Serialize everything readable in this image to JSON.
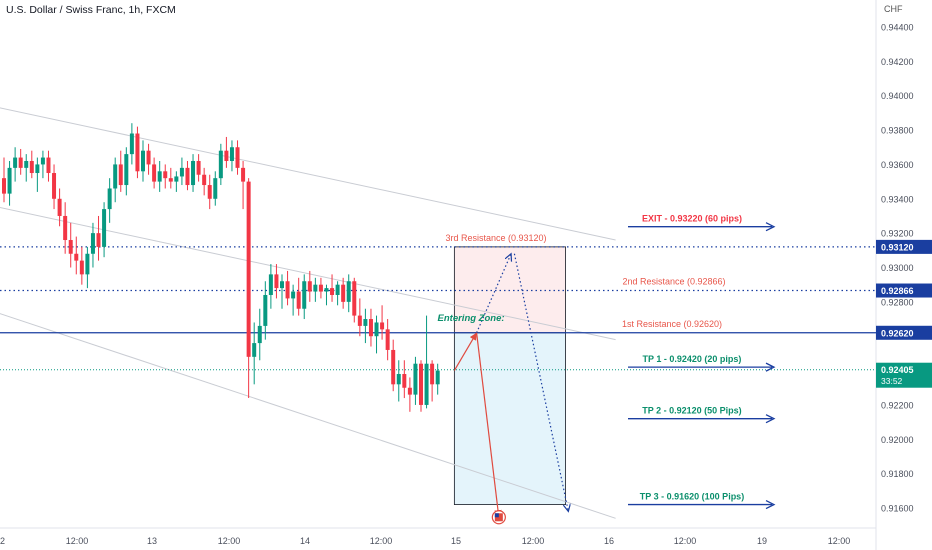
{
  "header": {
    "symbol_title": "U.S. Dollar / Swiss Franc, 1h, FXCM",
    "currency": "CHF"
  },
  "colors": {
    "up": "#089981",
    "down": "#f23645",
    "resistance": "#1a3ea0",
    "level_label": "#e8564a",
    "tp_label": "#0b8f6c",
    "arrow": "#1a3ea0",
    "channel": "#c9ccd3",
    "current_price": "#089981",
    "short_zone_fill": "#fdeced",
    "target_zone_fill": "#e4f4fb",
    "projection": "#e04a3f"
  },
  "chart_data": {
    "type": "candlestick",
    "symbol": "USDCHF",
    "timeframe": "1h",
    "y_range": [
      0.9152,
      0.9448
    ],
    "y_ticks": [
      "0.94400",
      "0.94200",
      "0.94000",
      "0.93800",
      "0.93600",
      "0.93400",
      "0.93200",
      "0.93000",
      "0.92800",
      "0.92600",
      "0.92400",
      "0.92200",
      "0.92000",
      "0.91800",
      "0.91600"
    ],
    "x_ticks": [
      "2",
      "12:00",
      "13",
      "12:00",
      "14",
      "12:00",
      "15",
      "12:00",
      "16",
      "12:00",
      "19",
      "12:00"
    ],
    "candles": [
      [
        0.9352,
        0.9364,
        0.9338,
        0.9343
      ],
      [
        0.9343,
        0.9362,
        0.9336,
        0.9358
      ],
      [
        0.9358,
        0.937,
        0.935,
        0.9364
      ],
      [
        0.9364,
        0.9369,
        0.9354,
        0.9358
      ],
      [
        0.9358,
        0.9366,
        0.935,
        0.9362
      ],
      [
        0.9362,
        0.9368,
        0.9352,
        0.9355
      ],
      [
        0.9355,
        0.9364,
        0.9344,
        0.936
      ],
      [
        0.936,
        0.9368,
        0.9352,
        0.9364
      ],
      [
        0.9364,
        0.9368,
        0.935,
        0.9355
      ],
      [
        0.9355,
        0.936,
        0.9334,
        0.934
      ],
      [
        0.934,
        0.9346,
        0.9324,
        0.933
      ],
      [
        0.933,
        0.9338,
        0.9308,
        0.9316
      ],
      [
        0.9316,
        0.9326,
        0.93,
        0.9308
      ],
      [
        0.9308,
        0.9318,
        0.9296,
        0.9304
      ],
      [
        0.9304,
        0.9312,
        0.929,
        0.9296
      ],
      [
        0.9296,
        0.9312,
        0.9288,
        0.9308
      ],
      [
        0.9308,
        0.9326,
        0.93,
        0.932
      ],
      [
        0.932,
        0.933,
        0.9304,
        0.9312
      ],
      [
        0.9312,
        0.9338,
        0.9306,
        0.9334
      ],
      [
        0.9334,
        0.9352,
        0.9326,
        0.9346
      ],
      [
        0.9346,
        0.9364,
        0.9338,
        0.936
      ],
      [
        0.936,
        0.9368,
        0.9344,
        0.9348
      ],
      [
        0.9348,
        0.937,
        0.9342,
        0.9366
      ],
      [
        0.9366,
        0.9384,
        0.936,
        0.9378
      ],
      [
        0.9378,
        0.9382,
        0.9352,
        0.9356
      ],
      [
        0.9356,
        0.9374,
        0.935,
        0.9368
      ],
      [
        0.9368,
        0.9372,
        0.9354,
        0.936
      ],
      [
        0.936,
        0.9364,
        0.9346,
        0.935
      ],
      [
        0.935,
        0.9362,
        0.9344,
        0.9356
      ],
      [
        0.9356,
        0.936,
        0.9346,
        0.9352
      ],
      [
        0.9352,
        0.9358,
        0.9346,
        0.935
      ],
      [
        0.935,
        0.9356,
        0.9344,
        0.9353
      ],
      [
        0.9353,
        0.9364,
        0.9348,
        0.9358
      ],
      [
        0.9358,
        0.9362,
        0.9345,
        0.9348
      ],
      [
        0.9348,
        0.9366,
        0.9344,
        0.9362
      ],
      [
        0.9362,
        0.9366,
        0.935,
        0.9354
      ],
      [
        0.9354,
        0.9358,
        0.9342,
        0.9348
      ],
      [
        0.9348,
        0.9354,
        0.9334,
        0.934
      ],
      [
        0.934,
        0.9356,
        0.9336,
        0.9352
      ],
      [
        0.9352,
        0.9372,
        0.9348,
        0.9368
      ],
      [
        0.9368,
        0.9376,
        0.9358,
        0.9362
      ],
      [
        0.9362,
        0.9374,
        0.9356,
        0.937
      ],
      [
        0.937,
        0.9374,
        0.9354,
        0.9358
      ],
      [
        0.9358,
        0.9362,
        0.9334,
        0.935
      ],
      [
        0.935,
        0.9352,
        0.9224,
        0.9248
      ],
      [
        0.9248,
        0.9268,
        0.9232,
        0.9256
      ],
      [
        0.9256,
        0.9276,
        0.9246,
        0.9266
      ],
      [
        0.9266,
        0.9292,
        0.9258,
        0.9284
      ],
      [
        0.9284,
        0.9302,
        0.9276,
        0.9296
      ],
      [
        0.9296,
        0.9302,
        0.9282,
        0.9288
      ],
      [
        0.9288,
        0.9296,
        0.9276,
        0.9292
      ],
      [
        0.9292,
        0.9298,
        0.9278,
        0.9282
      ],
      [
        0.9282,
        0.929,
        0.9272,
        0.9286
      ],
      [
        0.9286,
        0.9294,
        0.9272,
        0.9276
      ],
      [
        0.9276,
        0.9296,
        0.927,
        0.9292
      ],
      [
        0.9292,
        0.9298,
        0.928,
        0.9286
      ],
      [
        0.9286,
        0.9294,
        0.928,
        0.929
      ],
      [
        0.929,
        0.9294,
        0.9282,
        0.9286
      ],
      [
        0.9286,
        0.929,
        0.9278,
        0.9288
      ],
      [
        0.9288,
        0.9296,
        0.928,
        0.9284
      ],
      [
        0.9284,
        0.9292,
        0.9278,
        0.929
      ],
      [
        0.929,
        0.9294,
        0.9276,
        0.928
      ],
      [
        0.928,
        0.9296,
        0.9274,
        0.9292
      ],
      [
        0.9292,
        0.9294,
        0.9268,
        0.9272
      ],
      [
        0.9272,
        0.9282,
        0.926,
        0.9266
      ],
      [
        0.9266,
        0.9276,
        0.9256,
        0.927
      ],
      [
        0.927,
        0.9276,
        0.9254,
        0.926
      ],
      [
        0.926,
        0.9272,
        0.925,
        0.9268
      ],
      [
        0.9268,
        0.9278,
        0.9258,
        0.9264
      ],
      [
        0.9264,
        0.927,
        0.9246,
        0.9252
      ],
      [
        0.9252,
        0.9258,
        0.9228,
        0.9232
      ],
      [
        0.9232,
        0.9246,
        0.9222,
        0.9238
      ],
      [
        0.9238,
        0.9246,
        0.9224,
        0.923
      ],
      [
        0.923,
        0.9236,
        0.9216,
        0.9226
      ],
      [
        0.9226,
        0.9248,
        0.922,
        0.9244
      ],
      [
        0.9244,
        0.9246,
        0.9216,
        0.922
      ],
      [
        0.922,
        0.9272,
        0.9218,
        0.9244
      ],
      [
        0.9244,
        0.9246,
        0.9222,
        0.9232
      ],
      [
        0.9232,
        0.9244,
        0.9226,
        0.924
      ]
    ],
    "current_price": {
      "value": 0.92405,
      "label": "0.92405",
      "countdown": "33:52"
    },
    "channel_lines": [
      {
        "from": [
          -8,
          0.9398
        ],
        "to": [
          110,
          0.9316
        ]
      },
      {
        "from": [
          -8,
          0.934
        ],
        "to": [
          110,
          0.9258
        ]
      },
      {
        "from": [
          -8,
          0.9281
        ],
        "to": [
          110,
          0.9154
        ]
      }
    ],
    "levels": [
      {
        "name": "1st Resistance",
        "price": 0.9262,
        "tag": "0.92620",
        "label": "1st Resistance (0.92620)",
        "style": "solid"
      },
      {
        "name": "2nd Resistance",
        "price": 0.92866,
        "tag": "0.92866",
        "label": "2nd Resistance (0.92866)",
        "style": "dotted"
      },
      {
        "name": "3rd Resistance",
        "price": 0.9312,
        "tag": "0.93120",
        "label": "3rd Resistance (0.93120)",
        "style": "dotted"
      }
    ],
    "targets": [
      {
        "label": "EXIT - 0.93220 (60 pips)",
        "price": 0.9322,
        "kind": "exit"
      },
      {
        "label": "TP 1 - 0.92420 (20 pips)",
        "price": 0.9242,
        "kind": "tp"
      },
      {
        "label": "TP 2 - 0.92120 (50 Pips)",
        "price": 0.9212,
        "kind": "tp"
      },
      {
        "label": "TP 3 - 0.91620 (100 Pips)",
        "price": 0.9162,
        "kind": "tp"
      }
    ],
    "zones": [
      {
        "name": "stop-zone",
        "from_bar": 81,
        "to_bar": 101,
        "top": 0.9312,
        "bottom": 0.9262
      },
      {
        "name": "target-zone",
        "from_bar": 81,
        "to_bar": 101,
        "top": 0.9262,
        "bottom": 0.9162
      }
    ],
    "annotation": {
      "text": "Entering Zone:",
      "bar": 84,
      "price": 0.9269
    },
    "projections": [
      {
        "from": [
          81,
          0.924
        ],
        "to": [
          85,
          0.9262
        ],
        "style": "solid"
      },
      {
        "from": [
          85,
          0.9262
        ],
        "to": [
          89,
          0.91546
        ],
        "style": "solid"
      },
      {
        "from": [
          85,
          0.9262
        ],
        "to": [
          91.2,
          0.9308
        ],
        "style": "dotted"
      },
      {
        "from": [
          91.8,
          0.9308
        ],
        "to": [
          101.5,
          0.9158
        ],
        "style": "dotted"
      }
    ],
    "event_marker": {
      "bar": 89,
      "price": 0.91546,
      "symbol": "us-flag"
    }
  }
}
